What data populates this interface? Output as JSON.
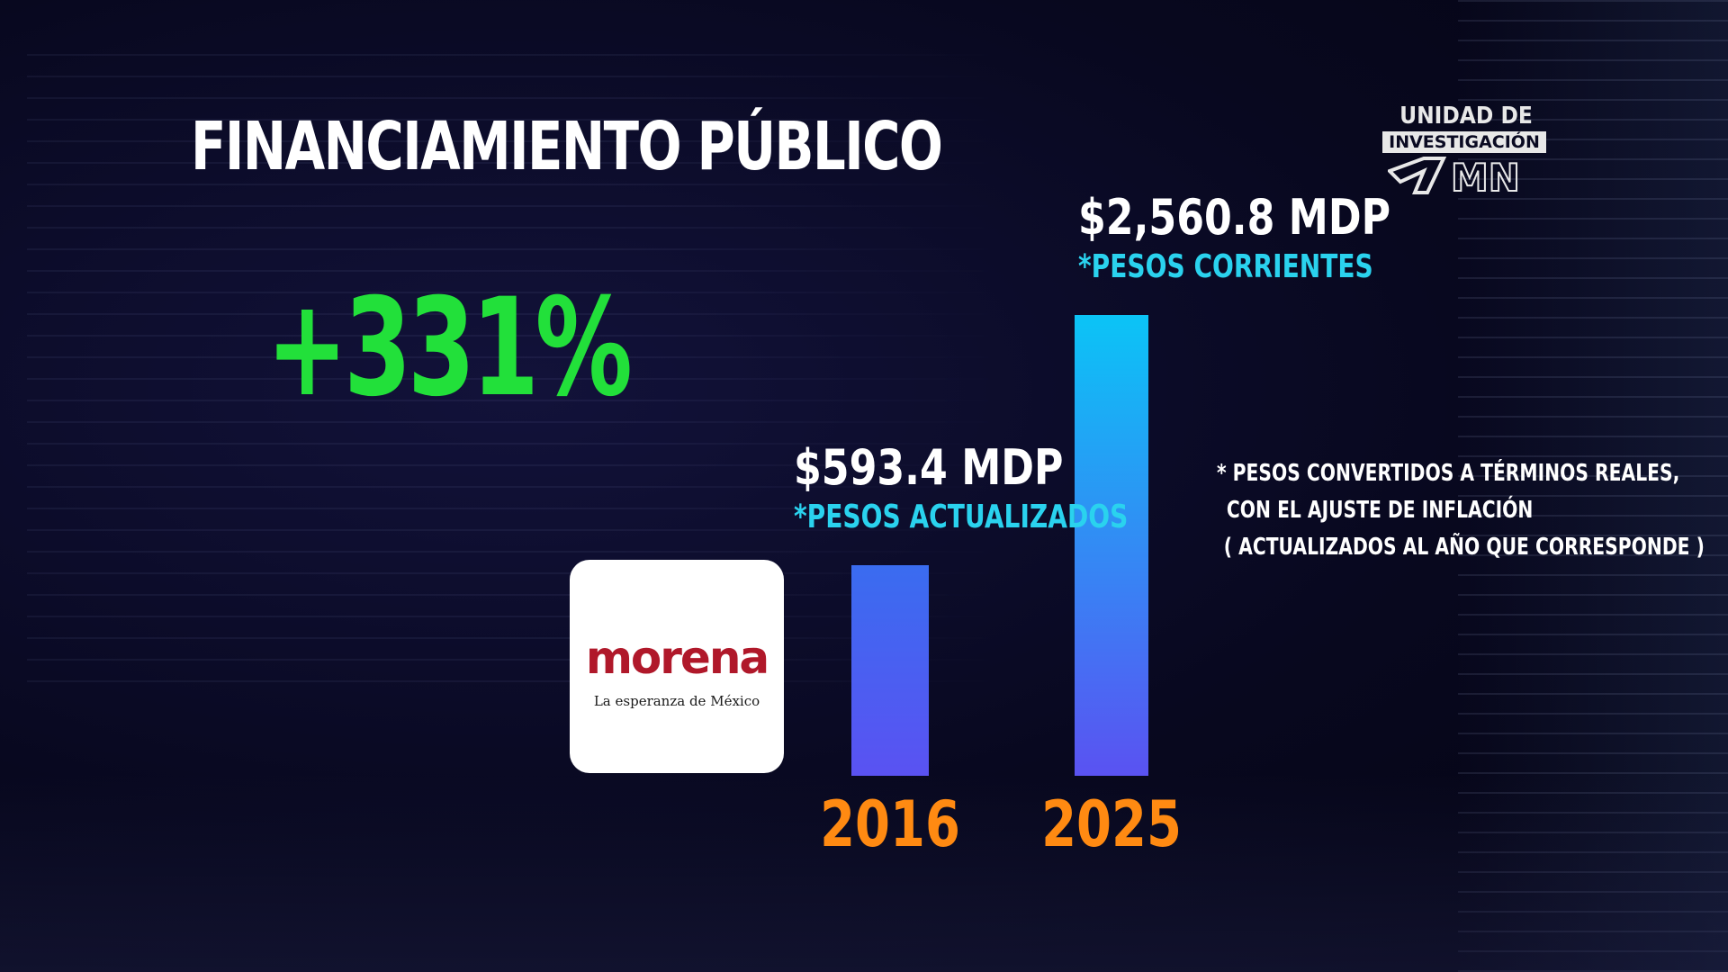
{
  "title": "FINANCIAMIENTO PÚBLICO",
  "highlight": "+331%",
  "logo": {
    "line1": "UNIDAD DE",
    "line2": "INVESTIGACIÓN",
    "mark": "MN"
  },
  "party": {
    "name": "morena",
    "slogan": "La esperanza de México"
  },
  "chart_data": {
    "type": "bar",
    "categories": [
      "2016",
      "2025"
    ],
    "values": [
      593.4,
      2560.8
    ],
    "value_labels": [
      "$593.4 MDP",
      "$2,560.8 MDP"
    ],
    "value_notes": [
      "*PESOS ACTUALIZADOS",
      "*PESOS CORRIENTES"
    ],
    "ylim": [
      0,
      2560.8
    ],
    "grid": false,
    "colors": {
      "bar_top_2025": "#0bc4f6",
      "bar_bottom": "#5a52f2",
      "bar_top_2016": "#3a6cf0",
      "year": "#ff8a12",
      "note": "#2ad2ee",
      "highlight": "#22e03a"
    }
  },
  "footnote": {
    "line1": "* PESOS CONVERTIDOS A TÉRMINOS REALES,",
    "line2": "CON EL AJUSTE DE INFLACIÓN",
    "line3": "( ACTUALIZADOS AL AÑO QUE CORRESPONDE )"
  }
}
